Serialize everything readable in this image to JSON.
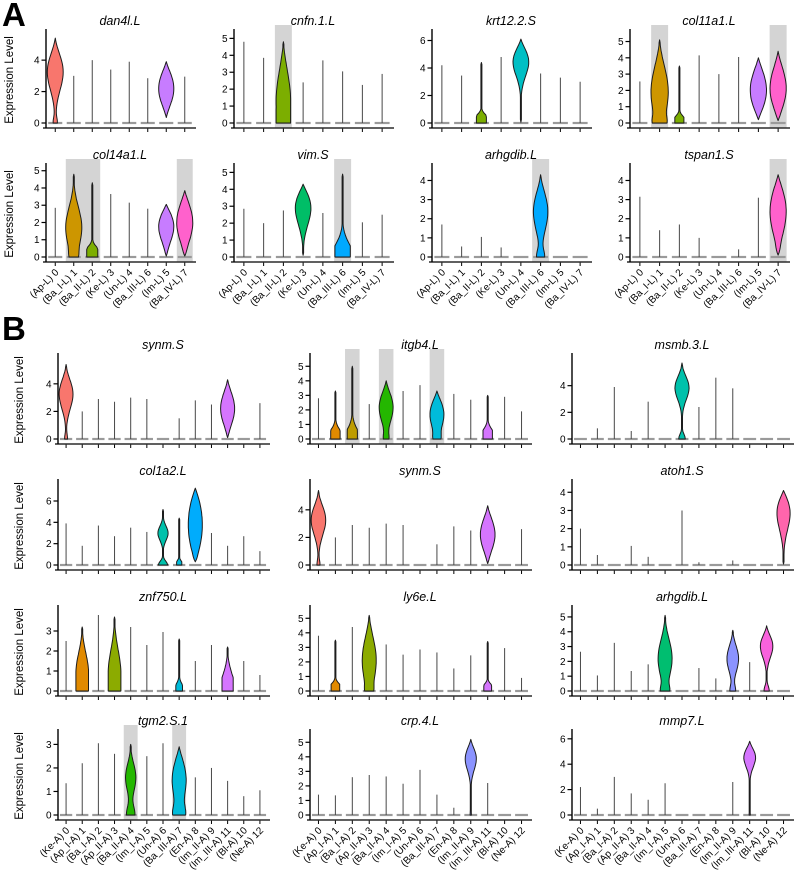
{
  "chart_data": {
    "type": "violin",
    "title": "",
    "colors": {
      "highlight": "#d4d4d4",
      "spike": "#474747",
      "baseline": "#9a9a9a",
      "axis": "#000000",
      "x_axis": "#2b2b2b",
      "violin_stroke": "#1c1c1c"
    },
    "panels": [
      {
        "label": "A",
        "ylabel": "Expression Level",
        "categories": [
          "(Ap-L) 0",
          "(Ba_I-L) 1",
          "(Ba_II-L) 2",
          "(Ke-L) 3",
          "(Un-L) 4",
          "(Ba_III-L) 6",
          "(Im-L) 5",
          "(Ba_IV-L) 7"
        ],
        "palette": [
          "#F8766D",
          "#CD9600",
          "#7CAE00",
          "#00BE67",
          "#00BFC4",
          "#00A9FF",
          "#C77CFF",
          "#FF61CC"
        ],
        "plots": [
          {
            "title": "dan4l.L",
            "yticks": [
              0,
              2,
              4
            ],
            "ymax": 5.6,
            "highlights": [],
            "cells": [
              {
                "h": 5.4,
                "m": 3.3,
                "w": 0.95,
                "b": 0.25,
                "sf": 0.22
              },
              3.0,
              4.0,
              3.4,
              3.9,
              2.85,
              {
                "h": 3.9,
                "l": 0.35,
                "m": 2.2,
                "w": 0.9,
                "sf": 0.3
              },
              2.95
            ]
          },
          {
            "title": "cnfn.1.L",
            "yticks": [
              0,
              1,
              2,
              3,
              4,
              5
            ],
            "ymax": 5.2,
            "highlights": [
              [
                2,
                2
              ]
            ],
            "cells": [
              4.8,
              3.85,
              {
                "h": 4.8,
                "m": 1.3,
                "w": 0.8,
                "b": 0.6,
                "sf": 0.35
              },
              2.4,
              3.7,
              3.05,
              2.25,
              2.9
            ]
          },
          {
            "title": "krt12.2.S",
            "yticks": [
              0,
              2,
              4,
              6
            ],
            "ymax": 6.4,
            "highlights": [],
            "cells": [
              4.2,
              3.45,
              {
                "h": 4.4,
                "m": 0.25,
                "w": 0.55,
                "b": 1,
                "sf": 0.08
              },
              4.8,
              {
                "h": 6.1,
                "l": 0.05,
                "m": 4.6,
                "w": 0.95,
                "b": 0.18,
                "sf": 0.18
              },
              3.6,
              3.3,
              3.0
            ]
          },
          {
            "title": "col11a1.L",
            "yticks": [
              0,
              1,
              2,
              3,
              4,
              5
            ],
            "ymax": 5.4,
            "highlights": [
              [
                1,
                1
              ],
              [
                7,
                7
              ]
            ],
            "cells": [
              2.55,
              {
                "h": 5.1,
                "m": 1.9,
                "w": 0.95,
                "b": 0.4,
                "sf": 0.3
              },
              {
                "h": 3.5,
                "m": 0.12,
                "w": 0.5,
                "b": 1,
                "sf": 0.06
              },
              4.15,
              3.0,
              4.05,
              {
                "h": 4.0,
                "l": 0.2,
                "m": 2.0,
                "w": 0.9,
                "sf": 0.32
              },
              {
                "h": 4.4,
                "l": 0.15,
                "m": 2.1,
                "w": 0.9,
                "b": 0.1,
                "sf": 0.3
              }
            ]
          },
          {
            "title": "col14a1.L",
            "yticks": [
              0,
              1,
              2,
              3,
              4,
              5
            ],
            "ymax": 5.1,
            "highlights": [
              [
                1,
                2
              ],
              [
                7,
                7
              ]
            ],
            "cells": [
              2.85,
              {
                "h": 4.8,
                "m": 1.7,
                "w": 0.95,
                "b": 0.25,
                "sf": 0.24
              },
              {
                "h": 4.3,
                "m": 0.2,
                "w": 0.65,
                "b": 1,
                "sf": 0.08
              },
              3.65,
              3.15,
              2.8,
              {
                "h": 3.05,
                "l": 0.05,
                "m": 1.8,
                "w": 0.9,
                "b": 0.1,
                "sf": 0.3
              },
              {
                "h": 3.85,
                "l": 0.05,
                "m": 2.0,
                "w": 0.95,
                "b": 0.15,
                "sf": 0.3
              }
            ]
          },
          {
            "title": "vim.S",
            "yticks": [
              0,
              1,
              2,
              3,
              4,
              5
            ],
            "ymax": 5.2,
            "highlights": [
              [
                5,
                5
              ]
            ],
            "cells": [
              2.85,
              2.0,
              2.75,
              {
                "h": 4.3,
                "l": 0.1,
                "m": 3.0,
                "w": 0.9,
                "b": 0.05,
                "sf": 0.25
              },
              2.6,
              {
                "h": 4.9,
                "m": 0.3,
                "w": 0.85,
                "b": 1,
                "sf": 0.14
              },
              2.05,
              2.5
            ]
          },
          {
            "title": "arhgdib.L",
            "yticks": [
              0,
              1,
              2,
              3,
              4
            ],
            "ymax": 4.6,
            "highlights": [
              [
                5,
                5
              ]
            ],
            "cells": [
              1.7,
              0.55,
              1.05,
              0.5,
              0.05,
              {
                "h": 4.3,
                "m": 2.4,
                "w": 0.8,
                "b": 0.5,
                "sf": 0.24
              },
              0.05,
              0.05
            ]
          },
          {
            "title": "tspan1.S",
            "yticks": [
              0,
              1,
              2,
              3,
              4
            ],
            "ymax": 4.6,
            "highlights": [
              [
                7,
                7
              ]
            ],
            "cells": [
              3.15,
              1.4,
              1.7,
              1.0,
              0.05,
              0.4,
              3.1,
              {
                "h": 4.3,
                "l": 0.1,
                "m": 2.4,
                "w": 0.9,
                "b": 0.3,
                "sf": 0.3
              }
            ]
          }
        ]
      },
      {
        "label": "B",
        "ylabel": "Expression Level",
        "categories": [
          "(Ke-A) 0",
          "(Ap_I-A) 1",
          "(Ba_I-A) 2",
          "(Ap_II-A) 3",
          "(Ba_II-A) 4",
          "(Im_I-A) 5",
          "(Un-A) 6",
          "(Ba_III-A) 7",
          "(En-A) 8",
          "(Im_II-A) 9",
          "(Im_III-A) 11",
          "(Bl-A) 10",
          "(Ne-A) 12"
        ],
        "palette": [
          "#F8766D",
          "#E18A00",
          "#BE9C00",
          "#8CAB00",
          "#24B700",
          "#00BE70",
          "#00C1AB",
          "#00BBDA",
          "#00ACFC",
          "#8B93FF",
          "#D575FE",
          "#F962DD",
          "#FF65AC"
        ],
        "plots": [
          {
            "title": "synm.S",
            "yticks": [
              0,
              2,
              4
            ],
            "ymax": 5.8,
            "highlights": [],
            "cells": [
              {
                "h": 5.4,
                "m": 3.3,
                "w": 0.95,
                "b": 0.2,
                "sf": 0.2
              },
              2.0,
              2.9,
              2.7,
              3.0,
              2.9,
              0.05,
              1.5,
              2.8,
              2.5,
              {
                "h": 4.3,
                "l": 0.1,
                "m": 2.2,
                "w": 0.95,
                "b": 0.1,
                "sf": 0.28
              },
              0.05,
              2.6
            ]
          },
          {
            "title": "itgb4.L",
            "yticks": [
              0,
              1,
              2,
              3,
              4,
              5
            ],
            "ymax": 5.5,
            "highlights": [
              [
                2,
                2
              ],
              [
                4,
                4
              ],
              [
                7,
                7
              ]
            ],
            "cells": [
              2.8,
              {
                "h": 3.3,
                "m": 0.3,
                "w": 0.6,
                "b": 1,
                "sf": 0.14
              },
              {
                "h": 5.0,
                "m": 0.3,
                "w": 0.65,
                "b": 1,
                "sf": 0.12
              },
              2.4,
              {
                "h": 4.0,
                "m": 2.2,
                "w": 0.9,
                "b": 0.3,
                "sf": 0.26
              },
              3.3,
              3.7,
              {
                "h": 3.3,
                "m": 1.7,
                "w": 0.9,
                "b": 0.35,
                "sf": 0.3
              },
              3.1,
              2.7,
              {
                "h": 3.0,
                "m": 0.3,
                "w": 0.6,
                "b": 1,
                "sf": 0.15
              },
              2.9,
              1.9
            ]
          },
          {
            "title": "msmb.3.L",
            "yticks": [
              0,
              2,
              4
            ],
            "ymax": 6.0,
            "highlights": [],
            "cells": [
              0.05,
              0.8,
              3.9,
              0.6,
              2.8,
              0.05,
              {
                "h": 5.7,
                "m": 3.9,
                "w": 0.95,
                "b": 0.45,
                "sf": 0.16
              },
              2.4,
              4.6,
              3.8,
              0.05,
              0.05,
              0.05
            ]
          },
          {
            "title": "col1a2.L",
            "yticks": [
              0,
              2,
              4,
              6
            ],
            "ymax": 7.5,
            "highlights": [],
            "cells": [
              3.9,
              1.8,
              3.7,
              2.7,
              3.5,
              3.1,
              {
                "h": 5.2,
                "m": 3.0,
                "w": 0.7,
                "b": 0.9,
                "sf": 0.13
              },
              {
                "h": 4.4,
                "m": 0.1,
                "w": 0.35,
                "b": 1,
                "sf": 0.04
              },
              {
                "h": 7.2,
                "l": 0.3,
                "m": 3.8,
                "w": 0.95,
                "b": 0.3,
                "sf": 0.4
              },
              3.0,
              1.8,
              2.7,
              1.3
            ]
          },
          {
            "title": "synm.S",
            "yticks": [
              0,
              2,
              4
            ],
            "ymax": 5.8,
            "highlights": [],
            "cells": [
              {
                "h": 5.4,
                "m": 3.3,
                "w": 0.95,
                "b": 0.2,
                "sf": 0.2
              },
              2.0,
              2.9,
              2.7,
              3.0,
              2.9,
              0.05,
              1.5,
              2.8,
              2.5,
              {
                "h": 4.3,
                "l": 0.1,
                "m": 2.2,
                "w": 0.95,
                "b": 0.1,
                "sf": 0.28
              },
              0.05,
              2.6
            ]
          },
          {
            "title": "atoh1.S",
            "yticks": [
              0,
              1,
              2,
              3,
              4
            ],
            "ymax": 4.4,
            "highlights": [],
            "cells": [
              2.0,
              0.55,
              0.05,
              1.05,
              0.45,
              0.05,
              3.0,
              0.15,
              0.05,
              0.25,
              0.05,
              0.05,
              {
                "h": 4.1,
                "l": 0.05,
                "m": 3.0,
                "w": 0.9,
                "b": 0.15,
                "sf": 0.25
              }
            ]
          },
          {
            "title": "znf750.L",
            "yticks": [
              0,
              1,
              2,
              3
            ],
            "ymax": 4.0,
            "highlights": [],
            "cells": [
              2.5,
              {
                "h": 3.2,
                "m": 0.9,
                "w": 0.85,
                "b": 0.5,
                "sf": 0.3
              },
              3.8,
              {
                "h": 3.7,
                "m": 0.9,
                "w": 0.85,
                "b": 0.6,
                "sf": 0.3
              },
              3.2,
              2.3,
              2.95,
              {
                "h": 2.6,
                "m": 0.06,
                "w": 0.45,
                "b": 1,
                "sf": 0.04
              },
              1.5,
              2.3,
              {
                "h": 2.2,
                "m": 0.35,
                "w": 0.75,
                "b": 0.8,
                "sf": 0.3
              },
              1.5,
              0.8
            ]
          },
          {
            "title": "ly6e.L",
            "yticks": [
              0,
              1,
              2,
              3,
              4,
              5
            ],
            "ymax": 5.5,
            "highlights": [],
            "cells": [
              3.8,
              {
                "h": 3.5,
                "m": 0.15,
                "w": 0.55,
                "b": 1,
                "sf": 0.09
              },
              4.4,
              {
                "h": 5.2,
                "m": 2.1,
                "w": 0.9,
                "b": 0.25,
                "sf": 0.3
              },
              3.2,
              2.5,
              2.85,
              2.65,
              1.55,
              2.45,
              {
                "h": 3.4,
                "m": 0.12,
                "w": 0.5,
                "b": 1,
                "sf": 0.08
              },
              2.95,
              0.9
            ]
          },
          {
            "title": "arhgdib.L",
            "yticks": [
              0,
              1,
              2,
              3,
              4,
              5
            ],
            "ymax": 5.4,
            "highlights": [],
            "cells": [
              2.65,
              1.05,
              3.25,
              1.35,
              1.8,
              {
                "h": 5.1,
                "m": 2.2,
                "w": 0.9,
                "b": 0.45,
                "sf": 0.25
              },
              0.05,
              1.55,
              0.85,
              {
                "h": 4.1,
                "m": 2.2,
                "w": 0.75,
                "b": 0.45,
                "sf": 0.22
              },
              1.95,
              {
                "h": 4.4,
                "m": 3.1,
                "w": 0.85,
                "b": 0.4,
                "sf": 0.18
              },
              0.05
            ]
          },
          {
            "title": "tgm2.S.1",
            "yticks": [
              0,
              1,
              2,
              3
            ],
            "ymax": 3.4,
            "highlights": [
              [
                4,
                4
              ],
              [
                7,
                7
              ]
            ],
            "cells": [
              1.35,
              2.2,
              3.05,
              2.6,
              {
                "h": 3.0,
                "m": 1.6,
                "w": 0.7,
                "b": 0.8,
                "sf": 0.2
              },
              2.5,
              3.05,
              {
                "h": 2.9,
                "m": 1.5,
                "w": 0.95,
                "b": 0.7,
                "sf": 0.3
              },
              1.6,
              2.0,
              1.45,
              0.8,
              1.05
            ]
          },
          {
            "title": "crp.4.L",
            "yticks": [
              0,
              1,
              2,
              3,
              4,
              5
            ],
            "ymax": 5.5,
            "highlights": [],
            "cells": [
              1.4,
              1.35,
              2.6,
              2.75,
              2.65,
              2.15,
              3.1,
              1.4,
              0.5,
              {
                "h": 5.2,
                "m": 4.0,
                "w": 0.8,
                "b": 0.1,
                "sf": 0.16
              },
              2.2,
              0.05,
              0.05
            ]
          },
          {
            "title": "mmp7.L",
            "yticks": [
              0,
              2,
              4,
              6
            ],
            "ymax": 6.3,
            "highlights": [],
            "cells": [
              2.2,
              0.5,
              3.0,
              1.7,
              1.2,
              2.5,
              0.05,
              0.05,
              0.05,
              2.6,
              {
                "h": 5.8,
                "m": 4.7,
                "w": 0.9,
                "b": 0.08,
                "sf": 0.14
              },
              0.05,
              0.05
            ]
          }
        ]
      }
    ]
  }
}
